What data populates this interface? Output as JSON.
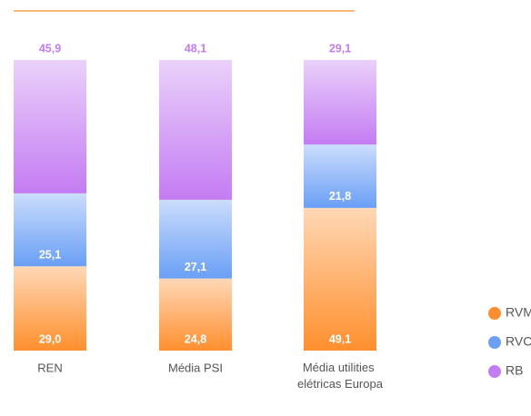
{
  "chart_data": {
    "type": "stacked_bar",
    "categories": [
      "REN",
      "Média PSI",
      "Média utilities elétricas Europa"
    ],
    "series": [
      {
        "name": "RVMP",
        "color": "#ff8f2e",
        "values": [
          29.0,
          24.8,
          49.1
        ],
        "value_labels": [
          "29,0",
          "24,8",
          "49,1"
        ]
      },
      {
        "name": "RVCP",
        "color": "#6a9ff5",
        "values": [
          25.1,
          27.1,
          21.8
        ],
        "value_labels": [
          "25,1",
          "27,1",
          "21,8"
        ]
      },
      {
        "name": "RB",
        "color": "#c47cf2",
        "values": [
          45.9,
          48.1,
          29.1
        ],
        "value_labels": [
          "45,9",
          "48,1",
          "29,1"
        ]
      }
    ],
    "ylim": [
      0,
      100
    ],
    "legend": "right"
  }
}
